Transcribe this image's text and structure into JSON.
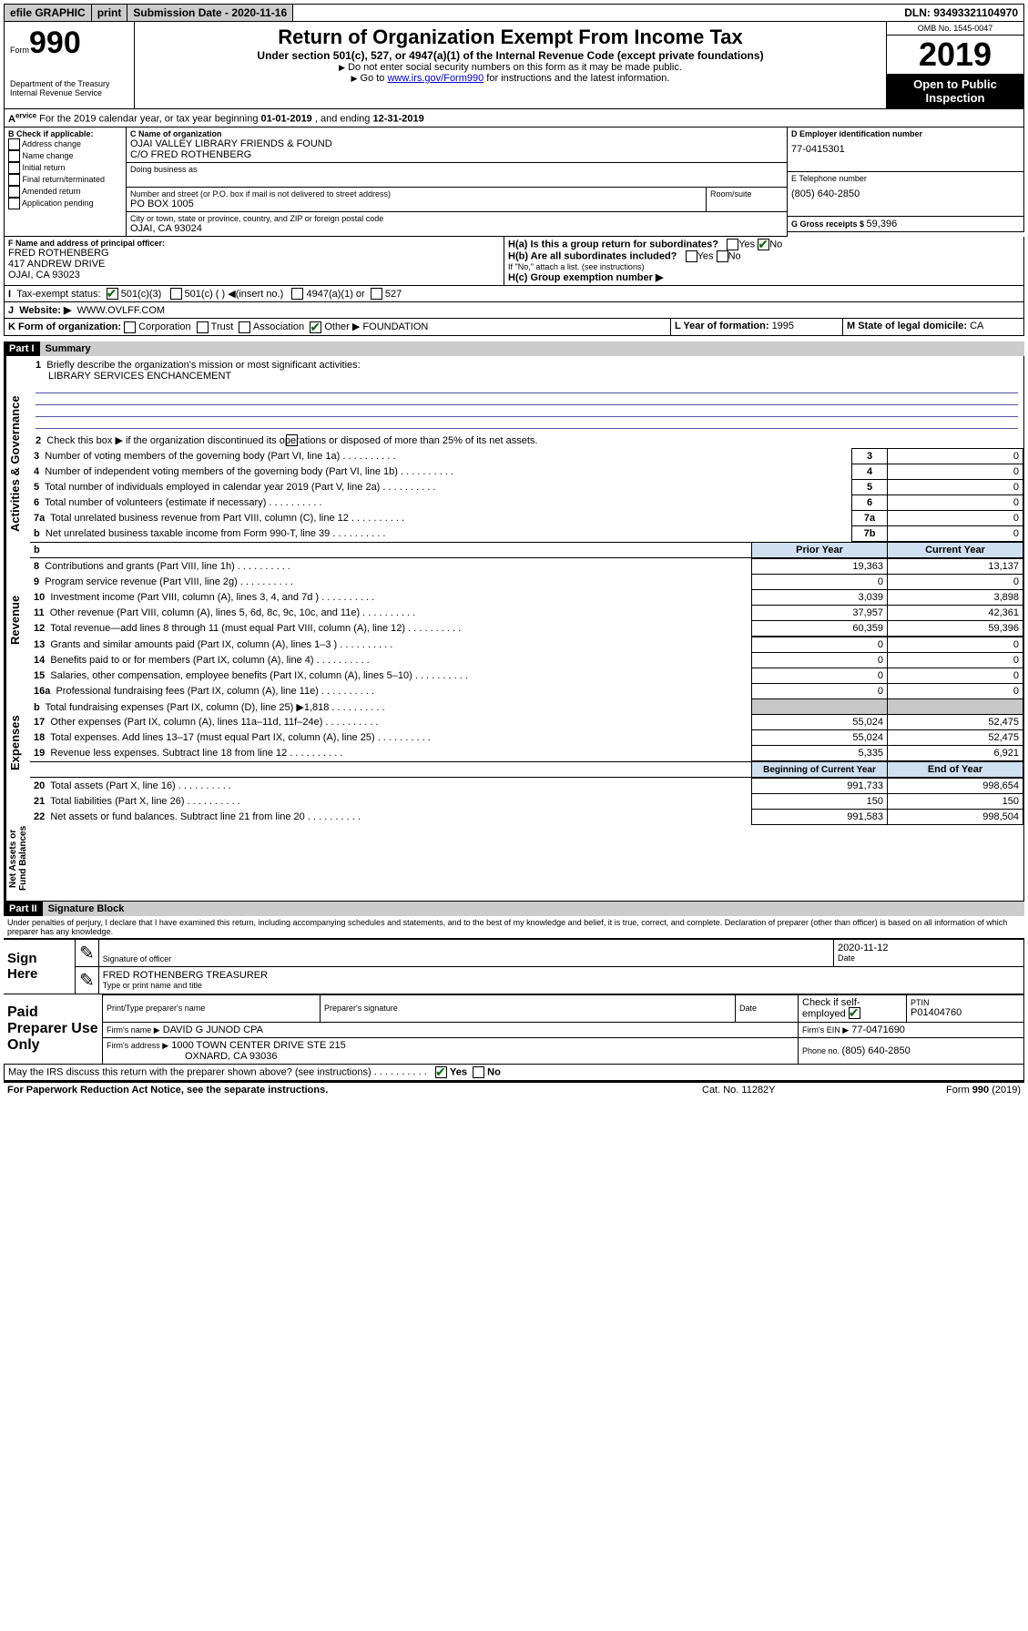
{
  "topbar": {
    "efile": "efile GRAPHIC",
    "print": "print",
    "subdate_lbl": "Submission Date - ",
    "subdate": "2020-11-16",
    "dln_lbl": "DLN: ",
    "dln": "93493321104970"
  },
  "header": {
    "form_lbl": "Form",
    "form_no": "990",
    "dept": "Department of the Treasury",
    "irs": "Internal Revenue Service",
    "title": "Return of Organization Exempt From Income Tax",
    "subtitle": "Under section 501(c), 527, or 4947(a)(1) of the Internal Revenue Code (except private foundations)",
    "note1": "Do not enter social security numbers on this form as it may be made public.",
    "note2_a": "Go to ",
    "note2_link": "www.irs.gov/Form990",
    "note2_b": " for instructions and the latest information.",
    "omb": "OMB No. 1545-0047",
    "year": "2019",
    "open": "Open to Public Inspection"
  },
  "lineA": {
    "text_a": "For the 2019 calendar year, or tax year beginning ",
    "begin": "01-01-2019",
    "text_b": " , and ending ",
    "end": "12-31-2019"
  },
  "boxB": {
    "hdr": "B Check if applicable:",
    "items": [
      "Address change",
      "Name change",
      "Initial return",
      "Final return/terminated",
      "Amended return",
      "Application pending"
    ]
  },
  "boxC": {
    "name_lbl": "C Name of organization",
    "name": "OJAI VALLEY LIBRARY FRIENDS & FOUND",
    "care": "C/O FRED ROTHENBERG",
    "dba_lbl": "Doing business as",
    "addr_lbl": "Number and street (or P.O. box if mail is not delivered to street address)",
    "room_lbl": "Room/suite",
    "addr": "PO BOX 1005",
    "city_lbl": "City or town, state or province, country, and ZIP or foreign postal code",
    "city": "OJAI, CA  93024"
  },
  "boxD": {
    "lbl": "D Employer identification number",
    "val": "77-0415301"
  },
  "boxE": {
    "lbl": "E Telephone number",
    "val": "(805) 640-2850"
  },
  "boxG": {
    "lbl": "G Gross receipts $ ",
    "val": "59,396"
  },
  "boxF": {
    "lbl": "F  Name and address of principal officer:",
    "name": "FRED ROTHENBERG",
    "addr1": "417 ANDREW DRIVE",
    "addr2": "OJAI, CA  93023"
  },
  "boxH": {
    "a": "H(a)  Is this a group return for subordinates?",
    "b": "H(b)  Are all subordinates included?",
    "bnote": "If \"No,\" attach a list. (see instructions)",
    "c": "H(c)  Group exemption number ▶",
    "yes": "Yes",
    "no": "No"
  },
  "lineI": {
    "lbl": "Tax-exempt status:",
    "o1": "501(c)(3)",
    "o2": "501(c) (  ) ◀(insert no.)",
    "o3": "4947(a)(1) or",
    "o4": "527"
  },
  "lineJ": {
    "lbl": "Website: ▶",
    "val": "WWW.OVLFF.COM"
  },
  "lineK": {
    "lbl": "K Form of organization:",
    "corp": "Corporation",
    "trust": "Trust",
    "assoc": "Association",
    "other": "Other ▶",
    "otherval": "FOUNDATION",
    "L": "L Year of formation: ",
    "Lval": "1995",
    "M": "M State of legal domicile: ",
    "Mval": "CA"
  },
  "partI": {
    "bar": "Part I",
    "title": "Summary",
    "q1": "Briefly describe the organization's mission or most significant activities:",
    "q1v": "LIBRARY SERVICES ENCHANCEMENT",
    "q2": "Check this box ▶       if the organization discontinued its operations or disposed of more than 25% of its net assets.",
    "rows": [
      {
        "n": "3",
        "t": "Number of voting members of the governing body (Part VI, line 1a)",
        "b": "3",
        "v": "0"
      },
      {
        "n": "4",
        "t": "Number of independent voting members of the governing body (Part VI, line 1b)",
        "b": "4",
        "v": "0"
      },
      {
        "n": "5",
        "t": "Total number of individuals employed in calendar year 2019 (Part V, line 2a)",
        "b": "5",
        "v": "0"
      },
      {
        "n": "6",
        "t": "Total number of volunteers (estimate if necessary)",
        "b": "6",
        "v": "0"
      },
      {
        "n": "7a",
        "t": "Total unrelated business revenue from Part VIII, column (C), line 12",
        "b": "7a",
        "v": "0"
      },
      {
        "n": "b",
        "t": "Net unrelated business taxable income from Form 990-T, line 39",
        "b": "7b",
        "v": "0"
      }
    ],
    "hdr_prior": "Prior Year",
    "hdr_curr": "Current Year",
    "rev": [
      {
        "n": "8",
        "t": "Contributions and grants (Part VIII, line 1h)",
        "p": "19,363",
        "c": "13,137"
      },
      {
        "n": "9",
        "t": "Program service revenue (Part VIII, line 2g)",
        "p": "0",
        "c": "0"
      },
      {
        "n": "10",
        "t": "Investment income (Part VIII, column (A), lines 3, 4, and 7d )",
        "p": "3,039",
        "c": "3,898"
      },
      {
        "n": "11",
        "t": "Other revenue (Part VIII, column (A), lines 5, 6d, 8c, 9c, 10c, and 11e)",
        "p": "37,957",
        "c": "42,361"
      },
      {
        "n": "12",
        "t": "Total revenue—add lines 8 through 11 (must equal Part VIII, column (A), line 12)",
        "p": "60,359",
        "c": "59,396"
      }
    ],
    "exp": [
      {
        "n": "13",
        "t": "Grants and similar amounts paid (Part IX, column (A), lines 1–3 )",
        "p": "0",
        "c": "0"
      },
      {
        "n": "14",
        "t": "Benefits paid to or for members (Part IX, column (A), line 4)",
        "p": "0",
        "c": "0"
      },
      {
        "n": "15",
        "t": "Salaries, other compensation, employee benefits (Part IX, column (A), lines 5–10)",
        "p": "0",
        "c": "0"
      },
      {
        "n": "16a",
        "t": "Professional fundraising fees (Part IX, column (A), line 11e)",
        "p": "0",
        "c": "0"
      },
      {
        "n": "b",
        "t": "Total fundraising expenses (Part IX, column (D), line 25) ▶1,818",
        "p": "",
        "c": ""
      },
      {
        "n": "17",
        "t": "Other expenses (Part IX, column (A), lines 11a–11d, 11f–24e)",
        "p": "55,024",
        "c": "52,475"
      },
      {
        "n": "18",
        "t": "Total expenses. Add lines 13–17 (must equal Part IX, column (A), line 25)",
        "p": "55,024",
        "c": "52,475"
      },
      {
        "n": "19",
        "t": "Revenue less expenses. Subtract line 18 from line 12",
        "p": "5,335",
        "c": "6,921"
      }
    ],
    "hdr_begin": "Beginning of Current Year",
    "hdr_end": "End of Year",
    "net": [
      {
        "n": "20",
        "t": "Total assets (Part X, line 16)",
        "p": "991,733",
        "c": "998,654"
      },
      {
        "n": "21",
        "t": "Total liabilities (Part X, line 26)",
        "p": "150",
        "c": "150"
      },
      {
        "n": "22",
        "t": "Net assets or fund balances. Subtract line 21 from line 20",
        "p": "991,583",
        "c": "998,504"
      }
    ],
    "vt_gov": "Activities & Governance",
    "vt_rev": "Revenue",
    "vt_exp": "Expenses",
    "vt_net": "Net Assets or Fund Balances"
  },
  "partII": {
    "bar": "Part II",
    "title": "Signature Block",
    "perjury": "Under penalties of perjury, I declare that I have examined this return, including accompanying schedules and statements, and to the best of my knowledge and belief, it is true, correct, and complete. Declaration of preparer (other than officer) is based on all information of which preparer has any knowledge.",
    "sign_here": "Sign Here",
    "sig_officer": "Signature of officer",
    "date_lbl": "Date",
    "date": "2020-11-12",
    "name_title": "FRED ROTHENBERG  TREASURER",
    "type_name": "Type or print name and title",
    "paid": "Paid Preparer Use Only",
    "prep_name_lbl": "Print/Type preparer's name",
    "prep_sig_lbl": "Preparer's signature",
    "date2": "Date",
    "check_self": "Check        if self-employed",
    "ptin_lbl": "PTIN",
    "ptin": "P01404760",
    "firm_name_lbl": "Firm's name    ▶",
    "firm_name": "DAVID G JUNOD CPA",
    "firm_ein_lbl": "Firm's EIN ▶",
    "firm_ein": "77-0471690",
    "firm_addr_lbl": "Firm's address ▶",
    "firm_addr1": "1000 TOWN CENTER DRIVE STE 215",
    "firm_addr2": "OXNARD, CA  93036",
    "phone_lbl": "Phone no. ",
    "phone": "(805) 640-2850",
    "discuss": "May the IRS discuss this return with the preparer shown above? (see instructions)",
    "yes": "Yes",
    "no": "No"
  },
  "footer": {
    "pra": "For Paperwork Reduction Act Notice, see the separate instructions.",
    "cat": "Cat. No. 11282Y",
    "form": "Form 990 (2019)"
  }
}
